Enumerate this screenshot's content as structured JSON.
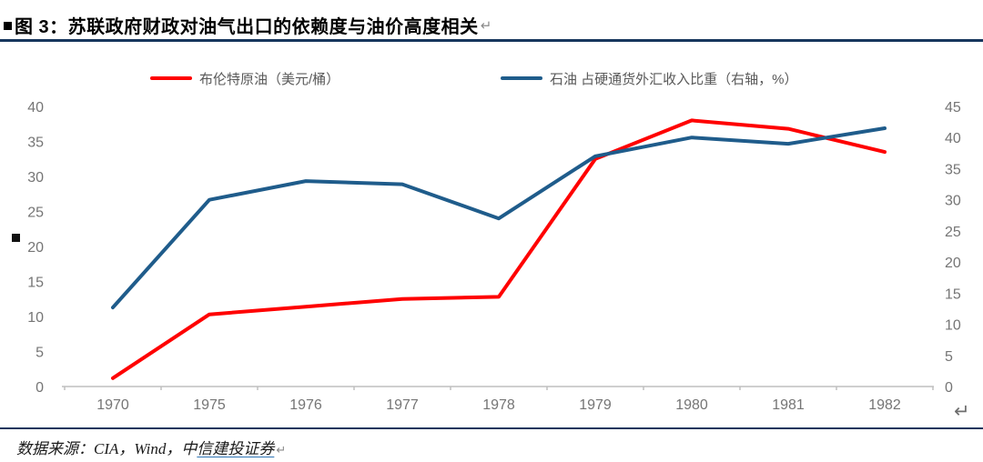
{
  "header": {
    "title": "图 3：苏联政府财政对油气出口的依赖度与油价高度相关",
    "return_mark": "↵"
  },
  "chart_data": {
    "type": "line",
    "title": "",
    "categories": [
      "1970",
      "1975",
      "1976",
      "1977",
      "1978",
      "1979",
      "1980",
      "1981",
      "1982"
    ],
    "series": [
      {
        "name": "布伦特原油（美元/桶）",
        "axis": "left",
        "color": "#FF0000",
        "values": [
          1.2,
          10.3,
          11.4,
          12.5,
          12.8,
          32.5,
          38.0,
          36.8,
          33.5
        ]
      },
      {
        "name": "石油 占硬通货外汇收入比重（右轴，%）",
        "axis": "right",
        "color": "#1F5C8B",
        "values": [
          12.7,
          30.0,
          33.0,
          32.5,
          27.0,
          37.0,
          40.0,
          39.0,
          41.5
        ]
      }
    ],
    "left_axis": {
      "min": 0,
      "max": 40,
      "step": 5
    },
    "right_axis": {
      "min": 0,
      "max": 45,
      "step": 5
    },
    "legend_position": "top",
    "grid": false
  },
  "footer": {
    "source_prefix": "数据来源：CIA，Wind，中",
    "source_link": "信建投证券",
    "return_mark": "↵"
  },
  "misc": {
    "chart_return_mark": "↵"
  },
  "colors": {
    "rule": "#17365D",
    "axis_text": "#757575",
    "axis_line": "#BFBFBF",
    "brent_red": "#FF0000",
    "oilshare_blue": "#1F5C8B"
  }
}
